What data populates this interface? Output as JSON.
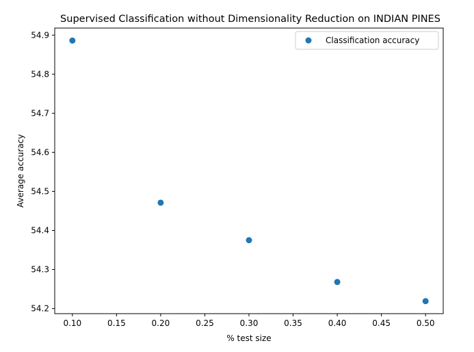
{
  "chart_data": {
    "type": "scatter",
    "title": "Supervised Classification without Dimensionality Reduction on INDIAN PINES",
    "xlabel": "% test size",
    "ylabel": "Average accuracy",
    "xlim": [
      0.08,
      0.52
    ],
    "ylim": [
      54.187,
      54.918
    ],
    "xticks": [
      "0.10",
      "0.15",
      "0.20",
      "0.25",
      "0.30",
      "0.35",
      "0.40",
      "0.45",
      "0.50"
    ],
    "yticks": [
      "54.2",
      "54.3",
      "54.4",
      "54.5",
      "54.6",
      "54.7",
      "54.8",
      "54.9"
    ],
    "series": [
      {
        "name": "Classification accuracy",
        "color": "#1f77b4",
        "x": [
          0.1,
          0.2,
          0.3,
          0.4,
          0.5
        ],
        "y": [
          54.886,
          54.471,
          54.375,
          54.268,
          54.219
        ]
      }
    ],
    "legend": {
      "placement": "top-right"
    },
    "grid": false
  }
}
